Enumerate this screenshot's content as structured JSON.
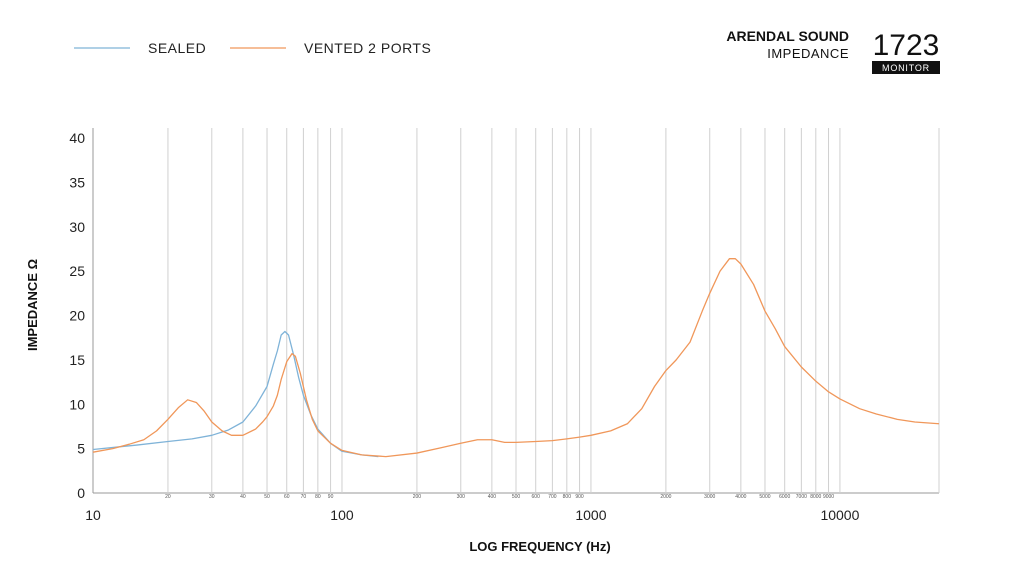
{
  "header": {
    "brand": "ARENDAL SOUND",
    "subtitle": "IMPEDANCE",
    "model": "1723",
    "model_badge": "MONITOR"
  },
  "chart_data": {
    "type": "line",
    "xscale": "log",
    "xlim": [
      10,
      25000
    ],
    "ylim": [
      0,
      40
    ],
    "xlabel": "LOG FREQUENCY (Hz)",
    "ylabel": "IMPEDANCE Ω",
    "yticks": [
      0,
      5,
      10,
      15,
      20,
      25,
      30,
      35,
      40
    ],
    "xticks_major": [
      10,
      100,
      1000,
      10000
    ],
    "xticks_major_labels": [
      "10",
      "100",
      "1000",
      "10000"
    ],
    "xticks_minor": [
      20,
      30,
      40,
      50,
      60,
      70,
      80,
      90,
      200,
      300,
      400,
      500,
      600,
      700,
      800,
      900,
      2000,
      3000,
      4000,
      5000,
      6000,
      7000,
      8000,
      9000
    ],
    "xticks_minor_labels": [
      "20",
      "30",
      "40",
      "50",
      "60",
      "70",
      "80",
      "90",
      "200",
      "300",
      "400",
      "500",
      "600",
      "700",
      "800",
      "900",
      "2000",
      "3000",
      "4000",
      "5000",
      "6000",
      "7000",
      "8000",
      "9000"
    ],
    "grid": true,
    "legend_position": "top-left",
    "series": [
      {
        "name": "SEALED",
        "color": "#7fb3d8",
        "points": [
          [
            10,
            4.9
          ],
          [
            15,
            5.4
          ],
          [
            20,
            5.8
          ],
          [
            25,
            6.1
          ],
          [
            30,
            6.5
          ],
          [
            35,
            7.1
          ],
          [
            40,
            8.0
          ],
          [
            45,
            9.8
          ],
          [
            50,
            12.0
          ],
          [
            53,
            14.5
          ],
          [
            55,
            16.0
          ],
          [
            57,
            17.8
          ],
          [
            59,
            18.2
          ],
          [
            61,
            17.8
          ],
          [
            64,
            15.5
          ],
          [
            67,
            13.0
          ],
          [
            70,
            11.0
          ],
          [
            75,
            8.8
          ],
          [
            80,
            7.2
          ],
          [
            90,
            5.6
          ],
          [
            100,
            4.7
          ],
          [
            120,
            4.3
          ],
          [
            140,
            4.1
          ]
        ]
      },
      {
        "name": "VENTED 2 PORTS",
        "color": "#f0975a",
        "points": [
          [
            10,
            4.6
          ],
          [
            12,
            5.0
          ],
          [
            14,
            5.5
          ],
          [
            16,
            6.0
          ],
          [
            18,
            7.0
          ],
          [
            20,
            8.3
          ],
          [
            22,
            9.6
          ],
          [
            24,
            10.5
          ],
          [
            26,
            10.2
          ],
          [
            28,
            9.2
          ],
          [
            30,
            8.0
          ],
          [
            33,
            7.0
          ],
          [
            36,
            6.5
          ],
          [
            40,
            6.5
          ],
          [
            45,
            7.2
          ],
          [
            48,
            8.0
          ],
          [
            50,
            8.6
          ],
          [
            53,
            9.8
          ],
          [
            55,
            11.0
          ],
          [
            57,
            12.8
          ],
          [
            60,
            14.8
          ],
          [
            63,
            15.7
          ],
          [
            65,
            15.4
          ],
          [
            68,
            13.5
          ],
          [
            72,
            10.5
          ],
          [
            76,
            8.3
          ],
          [
            80,
            7.0
          ],
          [
            90,
            5.6
          ],
          [
            100,
            4.8
          ],
          [
            120,
            4.3
          ],
          [
            150,
            4.1
          ],
          [
            200,
            4.5
          ],
          [
            250,
            5.1
          ],
          [
            300,
            5.6
          ],
          [
            350,
            6.0
          ],
          [
            400,
            6.0
          ],
          [
            450,
            5.7
          ],
          [
            500,
            5.7
          ],
          [
            600,
            5.8
          ],
          [
            700,
            5.9
          ],
          [
            800,
            6.1
          ],
          [
            900,
            6.3
          ],
          [
            1000,
            6.5
          ],
          [
            1200,
            7.0
          ],
          [
            1400,
            7.8
          ],
          [
            1600,
            9.5
          ],
          [
            1800,
            12.0
          ],
          [
            2000,
            13.8
          ],
          [
            2200,
            15.0
          ],
          [
            2500,
            17.0
          ],
          [
            2800,
            20.5
          ],
          [
            3000,
            22.5
          ],
          [
            3300,
            25.0
          ],
          [
            3600,
            26.4
          ],
          [
            3800,
            26.4
          ],
          [
            4000,
            25.8
          ],
          [
            4500,
            23.5
          ],
          [
            5000,
            20.5
          ],
          [
            5500,
            18.5
          ],
          [
            6000,
            16.5
          ],
          [
            7000,
            14.2
          ],
          [
            8000,
            12.6
          ],
          [
            9000,
            11.4
          ],
          [
            10000,
            10.6
          ],
          [
            12000,
            9.5
          ],
          [
            14000,
            8.9
          ],
          [
            17000,
            8.3
          ],
          [
            20000,
            8.0
          ],
          [
            25000,
            7.8
          ]
        ]
      }
    ]
  }
}
